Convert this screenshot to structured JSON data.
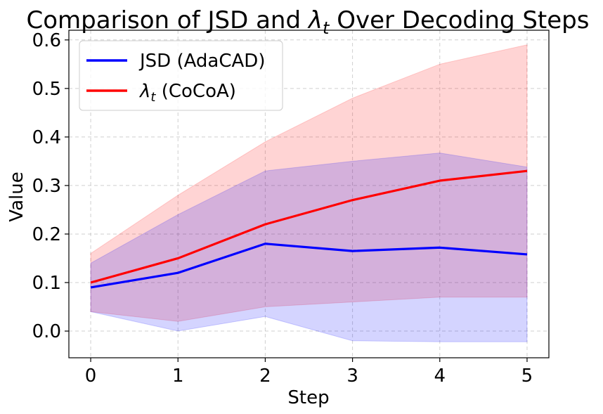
{
  "chart_data": {
    "type": "line",
    "title_prefix": "Comparison of JSD and ",
    "title_symbol": "λ",
    "title_subscript": "t",
    "title_suffix": " Over Decoding Steps",
    "xlabel": "Step",
    "ylabel": "Value",
    "x": [
      0,
      1,
      2,
      3,
      4,
      5
    ],
    "xlim": [
      -0.25,
      5.25
    ],
    "ylim": [
      -0.055,
      0.62
    ],
    "xticks": [
      0,
      1,
      2,
      3,
      4,
      5
    ],
    "xtick_labels": [
      "0",
      "1",
      "2",
      "3",
      "4",
      "5"
    ],
    "yticks": [
      0.0,
      0.1,
      0.2,
      0.3,
      0.4,
      0.5,
      0.6
    ],
    "ytick_labels": [
      "0.0",
      "0.1",
      "0.2",
      "0.3",
      "0.4",
      "0.5",
      "0.6"
    ],
    "grid": true,
    "legend_position": "top-left",
    "series": [
      {
        "name": "JSD (AdaCAD)",
        "legend_label": "JSD (AdaCAD)",
        "color": "#0000ff",
        "band_color": "#0000ff",
        "values": [
          0.09,
          0.12,
          0.18,
          0.165,
          0.172,
          0.158
        ],
        "lower": [
          0.04,
          0.0,
          0.03,
          -0.02,
          -0.022,
          -0.022
        ],
        "upper": [
          0.14,
          0.24,
          0.33,
          0.35,
          0.367,
          0.338
        ]
      },
      {
        "name": "λt (CoCoA)",
        "legend_symbol": "λ",
        "legend_subscript": "t",
        "legend_suffix": " (CoCoA)",
        "color": "#ff0000",
        "band_color": "#ff0000",
        "values": [
          0.1,
          0.15,
          0.22,
          0.27,
          0.31,
          0.33
        ],
        "lower": [
          0.04,
          0.02,
          0.05,
          0.06,
          0.07,
          0.07
        ],
        "upper": [
          0.16,
          0.28,
          0.39,
          0.48,
          0.55,
          0.59
        ]
      }
    ]
  }
}
